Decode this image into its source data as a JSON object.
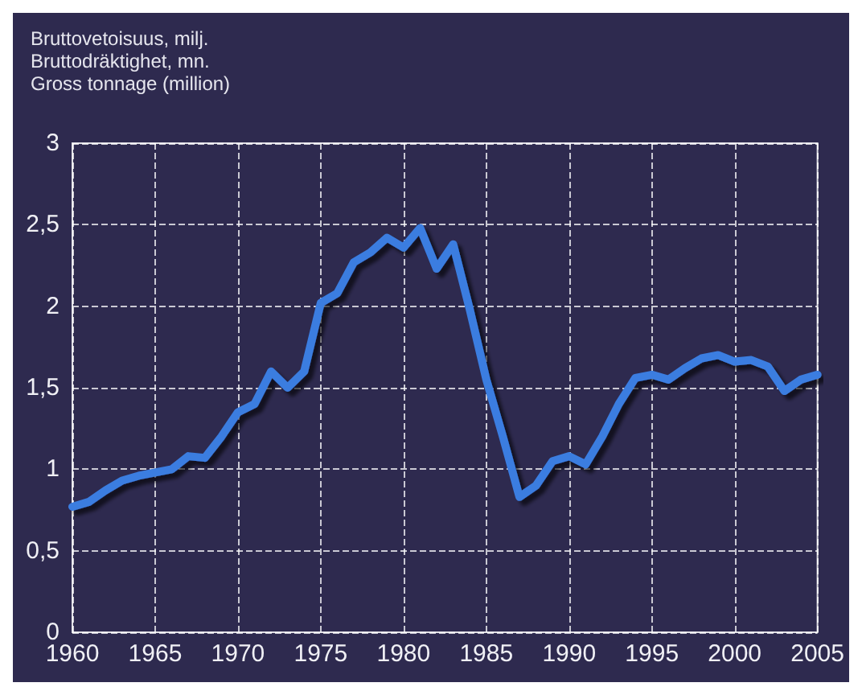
{
  "chart_data": {
    "type": "line",
    "ylabel": "Bruttovetoisuus, milj.\nBruttodräktighet, mn.\nGross tonnage (million)",
    "x": [
      1960,
      1961,
      1962,
      1963,
      1964,
      1965,
      1966,
      1967,
      1968,
      1969,
      1970,
      1971,
      1972,
      1973,
      1974,
      1975,
      1976,
      1977,
      1978,
      1979,
      1980,
      1981,
      1982,
      1983,
      1984,
      1985,
      1986,
      1987,
      1988,
      1989,
      1990,
      1991,
      1992,
      1993,
      1994,
      1995,
      1996,
      1997,
      1998,
      1999,
      2000,
      2001,
      2002,
      2003,
      2004,
      2005
    ],
    "series": [
      {
        "color": "#3a7de0",
        "values": [
          0.77,
          0.8,
          0.87,
          0.93,
          0.96,
          0.98,
          1.0,
          1.08,
          1.07,
          1.2,
          1.35,
          1.4,
          1.6,
          1.5,
          1.6,
          2.02,
          2.08,
          2.27,
          2.33,
          2.42,
          2.36,
          2.48,
          2.23,
          2.38,
          1.98,
          1.55,
          1.2,
          0.83,
          0.9,
          1.05,
          1.08,
          1.03,
          1.2,
          1.4,
          1.56,
          1.58,
          1.55,
          1.62,
          1.68,
          1.7,
          1.66,
          1.67,
          1.63,
          1.48,
          1.55,
          1.58
        ]
      }
    ],
    "xlim": [
      1960,
      2005
    ],
    "xticks": [
      1960,
      1965,
      1970,
      1975,
      1980,
      1985,
      1990,
      1995,
      2000,
      2005
    ],
    "ylim": [
      0,
      3
    ],
    "yticks": [
      0,
      {
        "value": 0.5,
        "label": "0,5"
      },
      1,
      {
        "value": 1.5,
        "label": "1,5"
      },
      2,
      {
        "value": 2.5,
        "label": "2,5"
      },
      3
    ],
    "grid": true,
    "marker": "none",
    "line_style": "solid"
  }
}
